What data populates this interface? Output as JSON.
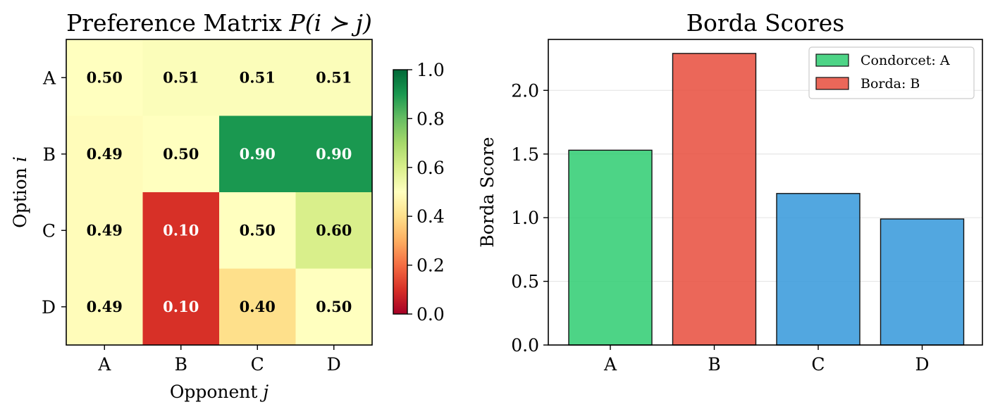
{
  "chart_data": [
    {
      "type": "heatmap",
      "title": "Preference Matrix",
      "title_math": "P(i ≻ j)",
      "xlabel": "Opponent",
      "xlabel_var": "j",
      "ylabel": "Option",
      "ylabel_var": "i",
      "x_categories": [
        "A",
        "B",
        "C",
        "D"
      ],
      "y_categories": [
        "A",
        "B",
        "C",
        "D"
      ],
      "values": [
        [
          0.5,
          0.51,
          0.51,
          0.51
        ],
        [
          0.49,
          0.5,
          0.9,
          0.9
        ],
        [
          0.49,
          0.1,
          0.5,
          0.6
        ],
        [
          0.49,
          0.1,
          0.4,
          0.5
        ]
      ],
      "colormap": "RdYlGn",
      "colorbar": {
        "range": [
          0.0,
          1.0
        ],
        "ticks": [
          "0.0",
          "0.2",
          "0.4",
          "0.6",
          "0.8",
          "1.0"
        ]
      }
    },
    {
      "type": "bar",
      "title": "Borda Scores",
      "xlabel": "",
      "ylabel": "Borda Score",
      "categories": [
        "A",
        "B",
        "C",
        "D"
      ],
      "values": [
        1.53,
        2.29,
        1.19,
        0.99
      ],
      "bar_colors": [
        "#2ecc71",
        "#e74c3c",
        "#3498db",
        "#3498db"
      ],
      "ylim": [
        0,
        2.4
      ],
      "yticks": [
        "0.0",
        "0.5",
        "1.0",
        "1.5",
        "2.0"
      ],
      "grid": "y",
      "legend": {
        "position": "top-right",
        "entries": [
          {
            "label": "Condorcet: A",
            "color": "#2ecc71"
          },
          {
            "label": "Borda: B",
            "color": "#e74c3c"
          }
        ]
      }
    }
  ]
}
